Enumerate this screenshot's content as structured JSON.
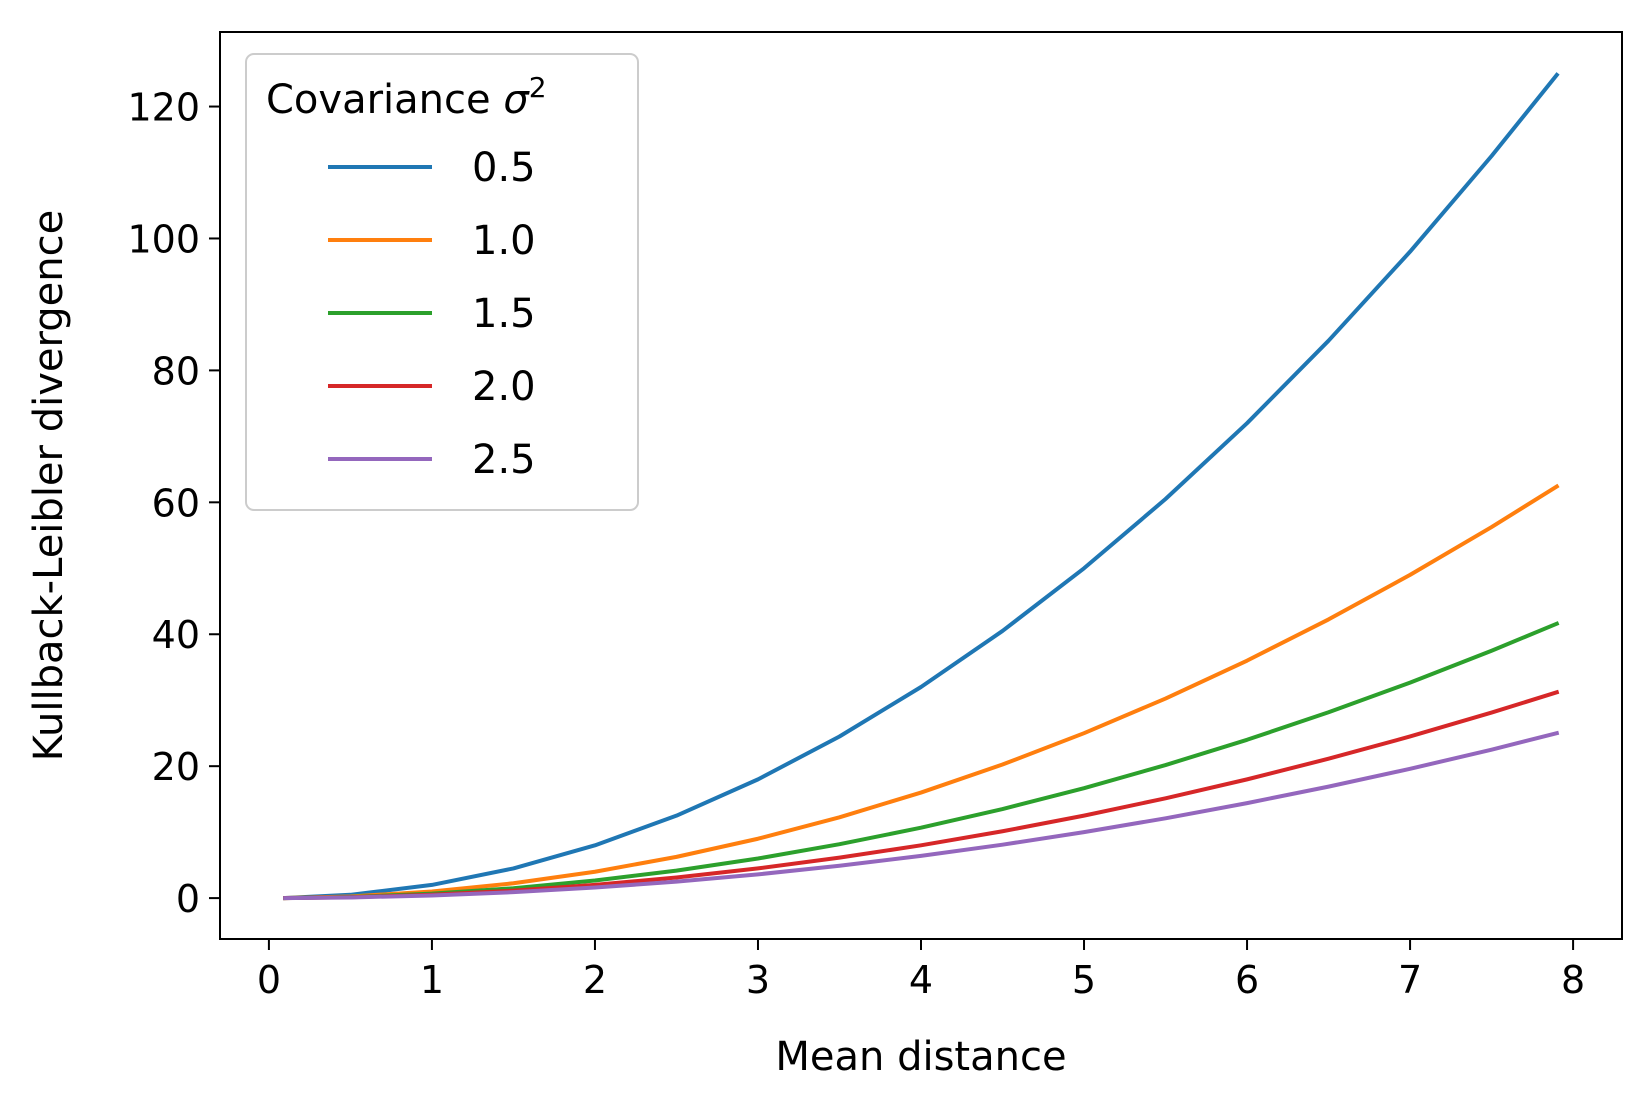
{
  "chart_data": {
    "type": "line",
    "xlabel": "Mean distance",
    "ylabel": "Kullback-Leibler divergence",
    "xlim": [
      -0.3,
      8.3
    ],
    "ylim": [
      -6.2,
      131.3
    ],
    "xticks": [
      0,
      1,
      2,
      3,
      4,
      5,
      6,
      7,
      8
    ],
    "yticks": [
      0,
      20,
      40,
      60,
      80,
      100,
      120
    ],
    "grid": false,
    "legend": {
      "title": "Covariance",
      "title_symbol": "σ",
      "title_superscript": "2",
      "placement": "top-left"
    },
    "x": [
      0.1,
      0.5,
      1.0,
      1.5,
      2.0,
      2.5,
      3.0,
      3.5,
      4.0,
      4.5,
      5.0,
      5.5,
      6.0,
      6.5,
      7.0,
      7.5,
      7.9
    ],
    "series": [
      {
        "name": "0.5",
        "color": "#1f77b4",
        "values": [
          0.02,
          0.5,
          2.0,
          4.5,
          8.0,
          12.5,
          18.0,
          24.5,
          32.0,
          40.5,
          50.0,
          60.5,
          72.0,
          84.5,
          98.0,
          112.5,
          124.8
        ]
      },
      {
        "name": "1.0",
        "color": "#ff7f0e",
        "values": [
          0.01,
          0.25,
          1.0,
          2.25,
          4.0,
          6.25,
          9.0,
          12.25,
          16.0,
          20.25,
          25.0,
          30.25,
          36.0,
          42.25,
          49.0,
          56.25,
          62.4
        ]
      },
      {
        "name": "1.5",
        "color": "#2ca02c",
        "values": [
          0.0,
          0.17,
          0.67,
          1.5,
          2.67,
          4.17,
          6.0,
          8.17,
          10.67,
          13.5,
          16.67,
          20.17,
          24.0,
          28.17,
          32.67,
          37.5,
          41.6
        ]
      },
      {
        "name": "2.0",
        "color": "#d62728",
        "values": [
          0.0,
          0.13,
          0.5,
          1.13,
          2.0,
          3.13,
          4.5,
          6.13,
          8.0,
          10.13,
          12.5,
          15.13,
          18.0,
          21.13,
          24.5,
          28.13,
          31.2
        ]
      },
      {
        "name": "2.5",
        "color": "#9467bd",
        "values": [
          0.0,
          0.1,
          0.4,
          0.9,
          1.6,
          2.5,
          3.6,
          4.9,
          6.4,
          8.1,
          10.0,
          12.1,
          14.4,
          16.9,
          19.6,
          22.5,
          25.0
        ]
      }
    ]
  }
}
